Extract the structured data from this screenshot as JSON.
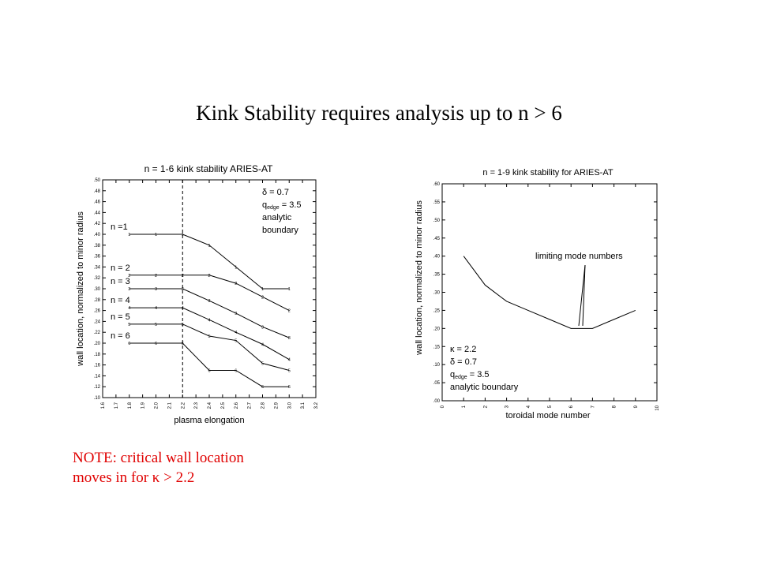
{
  "slide": {
    "title": "Kink Stability requires analysis up to n > 6",
    "note_line1": "NOTE:  critical wall location",
    "note_line2": "moves in for κ > 2.2"
  },
  "colors": {
    "note": "#e00000",
    "ink": "#000000"
  },
  "chart_data": [
    {
      "type": "line",
      "title": "n = 1-6 kink stability  ARIES-AT",
      "xlabel": "plasma elongation",
      "ylabel": "wall location, normalized to minor radius",
      "xlim": [
        1.6,
        3.2
      ],
      "ylim": [
        0.1,
        0.5
      ],
      "xticks": [
        "1.6",
        "1.7",
        "1.8",
        "1.9",
        "2.0",
        "2.1",
        "2.2",
        "2.3",
        "2.4",
        "2.5",
        "2.6",
        "2.7",
        "2.8",
        "2.9",
        "3.0",
        "3.1",
        "3.2"
      ],
      "yticks": [
        ".10",
        ".12",
        ".14",
        ".16",
        ".18",
        ".20",
        ".22",
        ".24",
        ".26",
        ".28",
        ".30",
        ".32",
        ".34",
        ".36",
        ".38",
        ".40",
        ".42",
        ".44",
        ".46",
        ".48",
        ".50"
      ],
      "vline": 2.2,
      "annotations": [
        "δ = 0.7",
        "q",
        "edge",
        " = 3.5",
        "analytic",
        "boundary"
      ],
      "x": [
        1.8,
        2.0,
        2.2,
        2.4,
        2.6,
        2.8,
        3.0
      ],
      "series": [
        {
          "name": "n =1",
          "marker": "1",
          "values": [
            0.4,
            0.4,
            0.4,
            0.38,
            0.34,
            0.3,
            0.3
          ]
        },
        {
          "name": "n = 2",
          "marker": "2",
          "values": [
            0.325,
            0.325,
            0.325,
            0.325,
            0.31,
            0.285,
            0.26
          ]
        },
        {
          "name": "n = 3",
          "marker": "3",
          "values": [
            0.3,
            0.3,
            0.3,
            0.278,
            0.255,
            0.23,
            0.21
          ]
        },
        {
          "name": "n = 4",
          "marker": "4",
          "values": [
            0.265,
            0.265,
            0.265,
            0.243,
            0.22,
            0.198,
            0.17
          ]
        },
        {
          "name": "n = 5",
          "marker": "5",
          "values": [
            0.235,
            0.235,
            0.235,
            0.213,
            0.205,
            0.163,
            0.15
          ]
        },
        {
          "name": "n = 6",
          "marker": "6",
          "values": [
            0.2,
            0.2,
            0.2,
            0.15,
            0.15,
            0.12,
            0.12
          ]
        }
      ]
    },
    {
      "type": "line",
      "title": "n = 1-9 kink stability for ARIES-AT",
      "xlabel": "toroidal mode number",
      "ylabel": "wall location, normalized to minor radius",
      "xlim": [
        0,
        10
      ],
      "ylim": [
        0.0,
        0.6
      ],
      "xticks": [
        "0",
        "1",
        "2",
        "3",
        "4",
        "5",
        "6",
        "7",
        "8",
        "9",
        "10"
      ],
      "yticks": [
        ".00",
        ".05",
        ".10",
        ".15",
        ".20",
        ".25",
        ".30",
        ".35",
        ".40",
        ".45",
        ".50",
        ".55",
        ".60"
      ],
      "annotations": [
        "limiting mode numbers",
        "κ = 2.2",
        "δ = 0.7",
        "q",
        "edge",
        " = 3.5",
        "analytic boundary"
      ],
      "x": [
        1,
        2,
        3,
        4,
        5,
        6,
        7,
        8,
        9
      ],
      "values": [
        0.4,
        0.32,
        0.275,
        0.25,
        0.225,
        0.2,
        0.2,
        0.225,
        0.25
      ]
    }
  ]
}
